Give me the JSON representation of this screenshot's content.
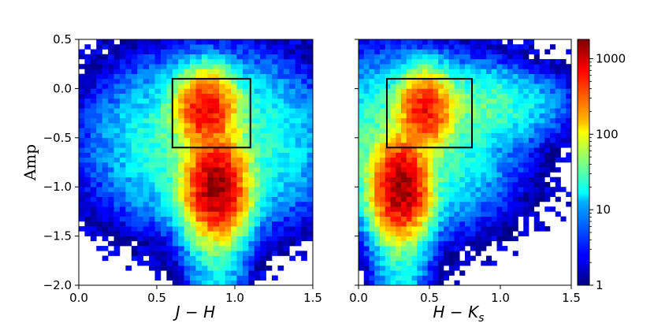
{
  "chart_data": [
    {
      "type": "heatmap",
      "xlabel": "J − H",
      "ylabel": "Amp",
      "xlim": [
        0.0,
        1.5
      ],
      "ylim": [
        -2.0,
        0.5
      ],
      "xticks": [
        "0.0",
        "0.5",
        "1.0",
        "1.5"
      ],
      "yticks": [
        "0.5",
        "0.0",
        "−0.5",
        "−1.0",
        "−1.5",
        "−2.0"
      ],
      "bins_x": 40,
      "bins_y": 50,
      "peaks": [
        {
          "x": 0.88,
          "y": -1.0,
          "count": 1500
        },
        {
          "x": 0.82,
          "y": -0.22,
          "count": 800
        }
      ],
      "box": {
        "x": [
          0.6,
          1.1
        ],
        "y": [
          -0.6,
          0.1
        ]
      }
    },
    {
      "type": "heatmap",
      "xlabel_main": "H − K",
      "xlabel_sub": "s",
      "ylabel": "",
      "xlim": [
        0.0,
        1.5
      ],
      "ylim": [
        -2.0,
        0.5
      ],
      "xticks": [
        "0.0",
        "0.5",
        "1.0",
        "1.5"
      ],
      "bins_x": 40,
      "bins_y": 50,
      "peaks": [
        {
          "x": 0.3,
          "y": -1.0,
          "count": 1500
        },
        {
          "x": 0.47,
          "y": -0.22,
          "count": 700
        }
      ],
      "box": {
        "x": [
          0.2,
          0.8
        ],
        "y": [
          -0.6,
          0.1
        ]
      }
    }
  ],
  "colorbar": {
    "scale": "log",
    "range": [
      1,
      1800
    ],
    "ticks": [
      "1000",
      "100",
      "10",
      "1"
    ],
    "colormap": "jet"
  }
}
